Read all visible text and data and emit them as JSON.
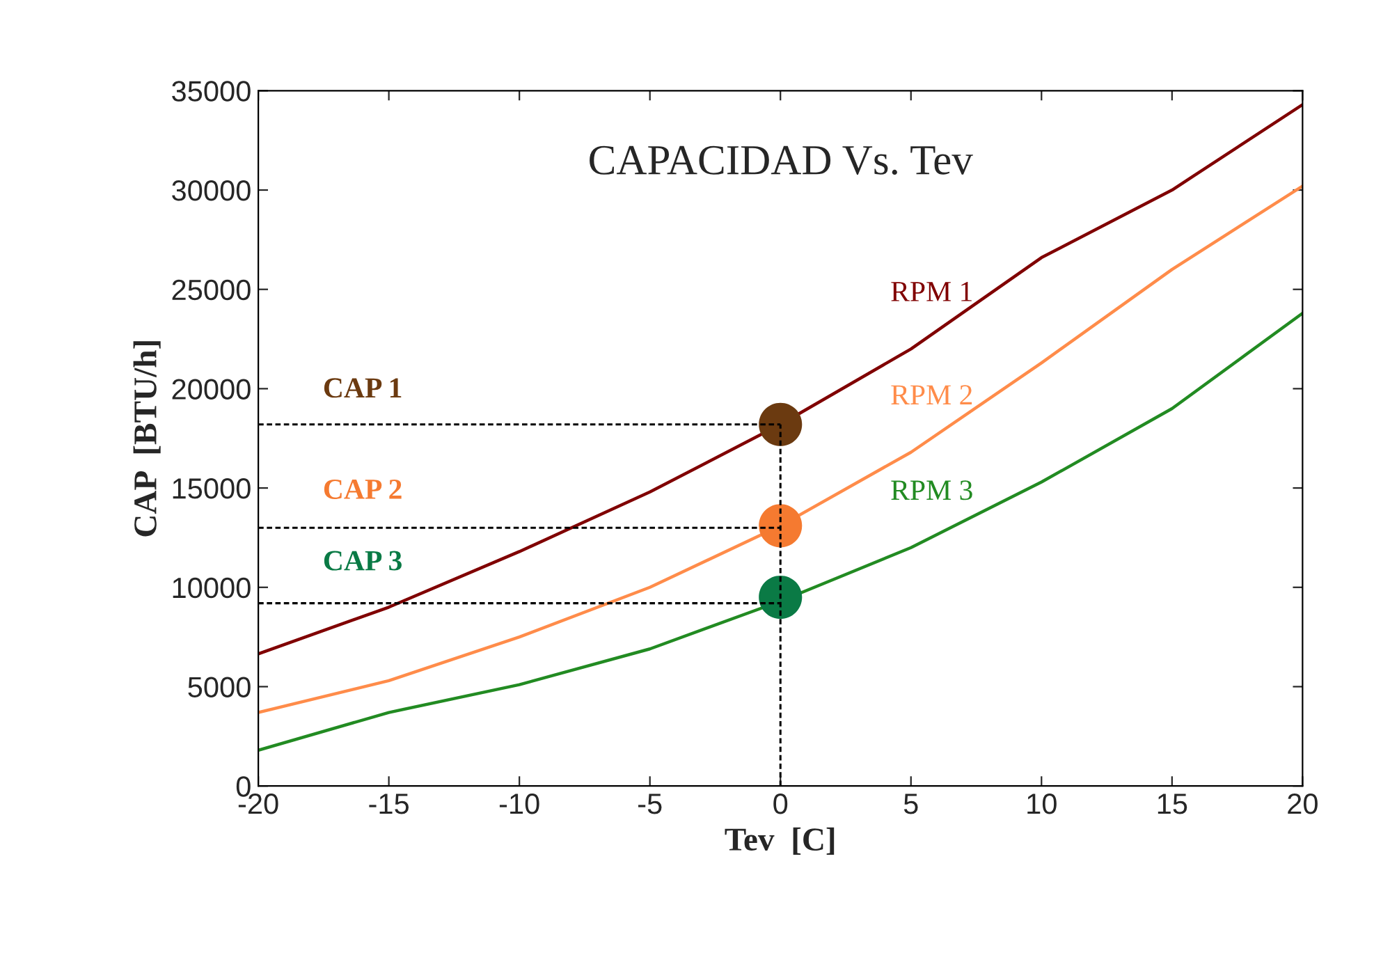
{
  "chart_data": {
    "type": "line",
    "title": "CAPACIDAD Vs. Tev",
    "xlabel": "Tev  [C]",
    "ylabel": "CAP  [BTU/h]",
    "xlim": [
      -20,
      20
    ],
    "xticks": [
      -20,
      -15,
      -10,
      -5,
      0,
      5,
      10,
      15,
      20
    ],
    "ylim": [
      0,
      35000
    ],
    "yticks": [
      0,
      5000,
      10000,
      15000,
      20000,
      25000,
      30000,
      35000
    ],
    "grid": false,
    "legend": false,
    "series": [
      {
        "name": "RPM 1",
        "color": "#800000",
        "x": [
          -20,
          -15,
          -10,
          -5,
          0,
          5,
          10,
          15,
          20
        ],
        "values": [
          6650,
          9000,
          11800,
          14800,
          18200,
          22000,
          26600,
          30000,
          34300
        ]
      },
      {
        "name": "RPM 2",
        "color": "#ff8c4a",
        "x": [
          -20,
          -15,
          -10,
          -5,
          0,
          5,
          10,
          15,
          20
        ],
        "values": [
          3700,
          5300,
          7500,
          10000,
          13100,
          16800,
          21300,
          26000,
          30200
        ]
      },
      {
        "name": "RPM 3",
        "color": "#228b22",
        "x": [
          -20,
          -15,
          -10,
          -5,
          0,
          5,
          10,
          15,
          20
        ],
        "values": [
          1800,
          3700,
          5100,
          6900,
          9300,
          12000,
          15300,
          19000,
          23800
        ]
      },
      {
        "color": "#000000",
        "line_style": "dashed",
        "x": [
          0,
          0
        ],
        "values": [
          0,
          18200
        ]
      },
      {
        "color": "#000000",
        "line_style": "dashed",
        "x": [
          -20,
          0
        ],
        "values": [
          18200,
          18200
        ]
      },
      {
        "color": "#000000",
        "line_style": "dashed",
        "x": [
          -20,
          0
        ],
        "values": [
          13000,
          13000
        ]
      },
      {
        "color": "#000000",
        "line_style": "dashed",
        "x": [
          -20,
          0
        ],
        "values": [
          9200,
          9200
        ]
      },
      {
        "name": "CAP 1",
        "type": "scatter",
        "marker": "circle",
        "color": "#6b3a10",
        "x": [
          0
        ],
        "values": [
          18200
        ]
      },
      {
        "name": "CAP 2",
        "type": "scatter",
        "marker": "circle",
        "color": "#f57a30",
        "x": [
          0
        ],
        "values": [
          13100
        ]
      },
      {
        "name": "CAP 3",
        "type": "scatter",
        "marker": "circle",
        "color": "#0a7a45",
        "x": [
          0
        ],
        "values": [
          9500
        ]
      }
    ]
  }
}
